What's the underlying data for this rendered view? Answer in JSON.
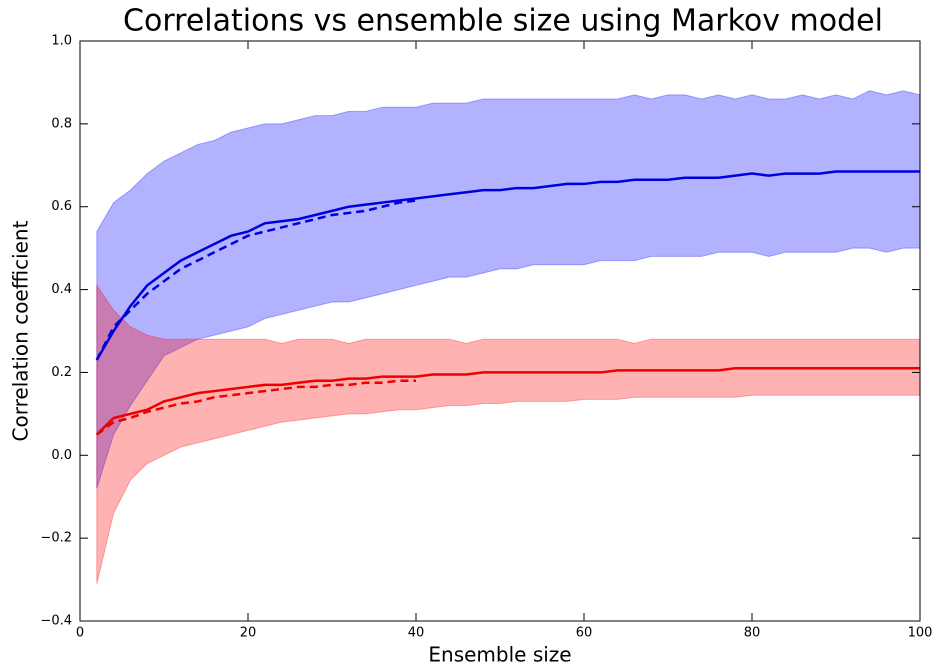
{
  "chart_data": {
    "type": "line",
    "title": "Correlations vs ensemble size using Markov model",
    "xlabel": "Ensemble size",
    "ylabel": "Correlation coefficient",
    "xlim": [
      0,
      100
    ],
    "ylim": [
      -0.4,
      1.0
    ],
    "xticks": [
      0,
      20,
      40,
      60,
      80,
      100
    ],
    "yticks": [
      {
        "value": -0.4,
        "label": "−0.4"
      },
      {
        "value": -0.2,
        "label": "−0.2"
      },
      {
        "value": 0,
        "label": "0.0"
      },
      0.2,
      0.4,
      0.6,
      0.8,
      {
        "value": 1,
        "label": "1.0"
      }
    ],
    "x": [
      2,
      4,
      6,
      8,
      10,
      12,
      14,
      16,
      18,
      20,
      22,
      24,
      26,
      28,
      30,
      32,
      34,
      36,
      38,
      40,
      42,
      44,
      46,
      48,
      50,
      52,
      54,
      56,
      58,
      60,
      62,
      64,
      66,
      68,
      70,
      72,
      74,
      76,
      78,
      80,
      82,
      84,
      86,
      88,
      90,
      92,
      94,
      96,
      98,
      100
    ],
    "bands": [
      {
        "color": "#0000ff",
        "upper": [
          0.54,
          0.61,
          0.64,
          0.68,
          0.71,
          0.73,
          0.75,
          0.76,
          0.78,
          0.79,
          0.8,
          0.8,
          0.81,
          0.82,
          0.82,
          0.83,
          0.83,
          0.84,
          0.84,
          0.84,
          0.85,
          0.85,
          0.85,
          0.86,
          0.86,
          0.86,
          0.86,
          0.86,
          0.86,
          0.86,
          0.86,
          0.86,
          0.87,
          0.86,
          0.87,
          0.87,
          0.86,
          0.87,
          0.86,
          0.87,
          0.86,
          0.86,
          0.87,
          0.86,
          0.87,
          0.86,
          0.88,
          0.87,
          0.88,
          0.87
        ],
        "lower": [
          -0.08,
          0.05,
          0.12,
          0.18,
          0.24,
          0.26,
          0.28,
          0.29,
          0.3,
          0.31,
          0.33,
          0.34,
          0.35,
          0.36,
          0.37,
          0.37,
          0.38,
          0.39,
          0.4,
          0.41,
          0.42,
          0.43,
          0.43,
          0.44,
          0.45,
          0.45,
          0.46,
          0.46,
          0.46,
          0.46,
          0.47,
          0.47,
          0.47,
          0.48,
          0.48,
          0.48,
          0.48,
          0.49,
          0.49,
          0.49,
          0.48,
          0.49,
          0.49,
          0.49,
          0.49,
          0.5,
          0.5,
          0.49,
          0.5,
          0.5
        ]
      },
      {
        "color": "#ff0000",
        "upper": [
          0.41,
          0.35,
          0.31,
          0.29,
          0.28,
          0.28,
          0.28,
          0.28,
          0.28,
          0.28,
          0.28,
          0.27,
          0.28,
          0.28,
          0.28,
          0.27,
          0.28,
          0.28,
          0.28,
          0.28,
          0.28,
          0.28,
          0.27,
          0.28,
          0.28,
          0.28,
          0.28,
          0.28,
          0.28,
          0.28,
          0.28,
          0.28,
          0.27,
          0.28,
          0.28,
          0.28,
          0.28,
          0.28,
          0.28,
          0.28,
          0.28,
          0.28,
          0.28,
          0.28,
          0.28,
          0.28,
          0.28,
          0.28,
          0.28,
          0.28
        ],
        "lower": [
          -0.31,
          -0.14,
          -0.06,
          -0.02,
          0,
          0.02,
          0.03,
          0.04,
          0.05,
          0.06,
          0.07,
          0.08,
          0.085,
          0.09,
          0.095,
          0.1,
          0.1,
          0.105,
          0.11,
          0.11,
          0.115,
          0.12,
          0.12,
          0.125,
          0.125,
          0.13,
          0.13,
          0.13,
          0.13,
          0.135,
          0.135,
          0.135,
          0.14,
          0.14,
          0.14,
          0.14,
          0.14,
          0.14,
          0.14,
          0.145,
          0.145,
          0.145,
          0.145,
          0.145,
          0.145,
          0.145,
          0.145,
          0.145,
          0.145,
          0.145
        ]
      }
    ],
    "series": [
      {
        "color": "#0000dd",
        "style": "solid",
        "values": [
          0.23,
          0.3,
          0.36,
          0.41,
          0.44,
          0.47,
          0.49,
          0.51,
          0.53,
          0.54,
          0.56,
          0.565,
          0.57,
          0.58,
          0.59,
          0.6,
          0.605,
          0.61,
          0.615,
          0.62,
          0.625,
          0.63,
          0.635,
          0.64,
          0.64,
          0.645,
          0.645,
          0.65,
          0.655,
          0.655,
          0.66,
          0.66,
          0.665,
          0.665,
          0.665,
          0.67,
          0.67,
          0.67,
          0.675,
          0.68,
          0.675,
          0.68,
          0.68,
          0.68,
          0.685,
          0.685,
          0.685,
          0.685,
          0.685,
          0.685
        ]
      },
      {
        "color": "#0000dd",
        "style": "dashed",
        "values": [
          0.23,
          0.31,
          0.35,
          0.39,
          0.42,
          0.45,
          0.47,
          0.49,
          0.51,
          0.53,
          0.54,
          0.55,
          0.56,
          0.57,
          0.58,
          0.585,
          0.59,
          0.6,
          0.61,
          0.615,
          null,
          null,
          null,
          null,
          null,
          null,
          null,
          null,
          null,
          null,
          null,
          null,
          null,
          null,
          null,
          null,
          null,
          null,
          null,
          null,
          null,
          null,
          null,
          null,
          null,
          null,
          null,
          null,
          null,
          null
        ]
      },
      {
        "color": "#ee0000",
        "style": "solid",
        "values": [
          0.05,
          0.09,
          0.1,
          0.11,
          0.13,
          0.14,
          0.15,
          0.155,
          0.16,
          0.165,
          0.17,
          0.17,
          0.175,
          0.18,
          0.18,
          0.185,
          0.185,
          0.19,
          0.19,
          0.19,
          0.195,
          0.195,
          0.195,
          0.2,
          0.2,
          0.2,
          0.2,
          0.2,
          0.2,
          0.2,
          0.2,
          0.205,
          0.205,
          0.205,
          0.205,
          0.205,
          0.205,
          0.205,
          0.21,
          0.21,
          0.21,
          0.21,
          0.21,
          0.21,
          0.21,
          0.21,
          0.21,
          0.21,
          0.21,
          0.21
        ]
      },
      {
        "color": "#ee0000",
        "style": "dashed",
        "values": [
          0.05,
          0.08,
          0.09,
          0.105,
          0.115,
          0.125,
          0.13,
          0.14,
          0.145,
          0.15,
          0.155,
          0.16,
          0.165,
          0.165,
          0.17,
          0.17,
          0.175,
          0.175,
          0.18,
          0.18,
          null,
          null,
          null,
          null,
          null,
          null,
          null,
          null,
          null,
          null,
          null,
          null,
          null,
          null,
          null,
          null,
          null,
          null,
          null,
          null,
          null,
          null,
          null,
          null,
          null,
          null,
          null,
          null,
          null,
          null
        ]
      }
    ]
  }
}
